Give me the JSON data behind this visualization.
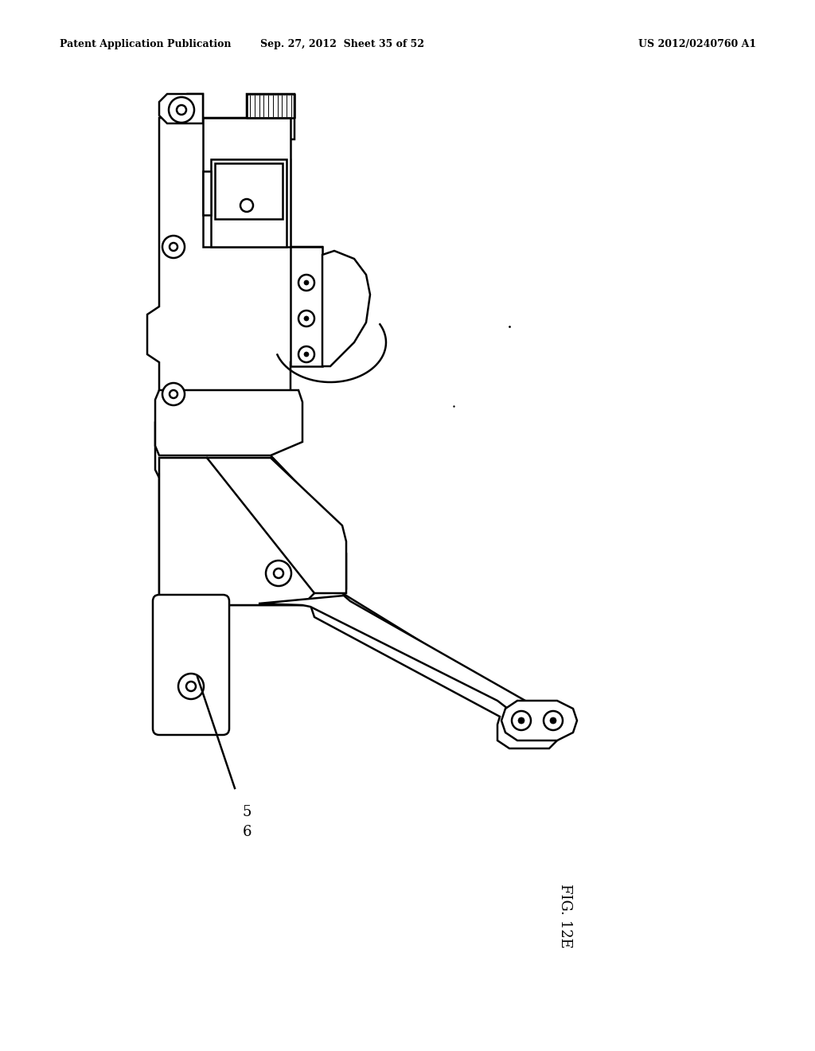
{
  "background_color": "#ffffff",
  "header_left": "Patent Application Publication",
  "header_center": "Sep. 27, 2012  Sheet 35 of 52",
  "header_right": "US 2012/0240760 A1",
  "label_part": "56",
  "figure_label": "FIG. 12E",
  "line_color": "#000000",
  "stroke_width": 1.8
}
